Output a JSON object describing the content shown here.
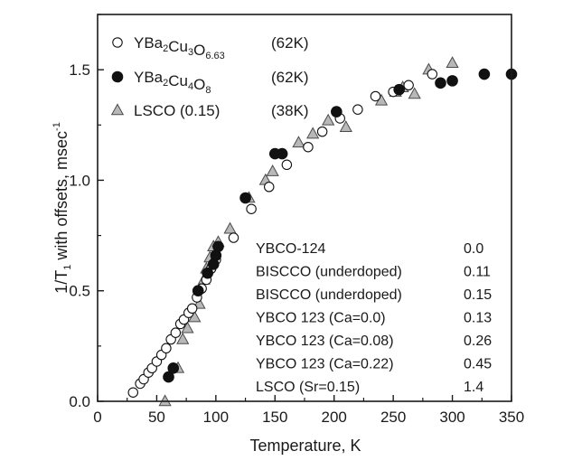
{
  "chart_data": {
    "type": "scatter",
    "title": "",
    "xlabel": {
      "main": "Temperature,",
      "unit": "K"
    },
    "ylabel": {
      "prefix": "1/T",
      "sub": "1",
      "rest": " with offsets,  msec",
      "sup": "-1"
    },
    "xlim": [
      0,
      350
    ],
    "ylim": [
      0,
      1.75
    ],
    "x_ticks": [
      0,
      50,
      100,
      150,
      200,
      250,
      300,
      350
    ],
    "y_ticks": [
      0.0,
      0.5,
      1.0,
      1.5
    ],
    "x_tick_labels": [
      "0",
      "50",
      "100",
      "150",
      "200",
      "250",
      "300",
      "350"
    ],
    "y_tick_labels": [
      "0.0",
      "0.5",
      "1.0",
      "1.5"
    ],
    "series": [
      {
        "name": "YBa2Cu3O6.63",
        "legend_parts": [
          {
            "t": "YBa",
            "s": "n"
          },
          {
            "t": "2",
            "s": "sub"
          },
          {
            "t": "Cu",
            "s": "n"
          },
          {
            "t": "3",
            "s": "sub"
          },
          {
            "t": "O",
            "s": "n"
          },
          {
            "t": "6.63",
            "s": "sub"
          }
        ],
        "tc": "(62K)",
        "marker": "open-circle",
        "points": [
          [
            30,
            0.04
          ],
          [
            36,
            0.08
          ],
          [
            39,
            0.1
          ],
          [
            43,
            0.13
          ],
          [
            46,
            0.15
          ],
          [
            50,
            0.18
          ],
          [
            54,
            0.21
          ],
          [
            58,
            0.24
          ],
          [
            62,
            0.28
          ],
          [
            66,
            0.31
          ],
          [
            70,
            0.35
          ],
          [
            73,
            0.37
          ],
          [
            77,
            0.4
          ],
          [
            80,
            0.42
          ],
          [
            84,
            0.47
          ],
          [
            88,
            0.51
          ],
          [
            92,
            0.55
          ],
          [
            96,
            0.6
          ],
          [
            100,
            0.64
          ],
          [
            115,
            0.74
          ],
          [
            130,
            0.87
          ],
          [
            145,
            0.97
          ],
          [
            160,
            1.07
          ],
          [
            178,
            1.15
          ],
          [
            190,
            1.22
          ],
          [
            205,
            1.28
          ],
          [
            220,
            1.32
          ],
          [
            235,
            1.38
          ],
          [
            250,
            1.4
          ],
          [
            263,
            1.43
          ],
          [
            283,
            1.48
          ]
        ]
      },
      {
        "name": "YBa2Cu4O8",
        "legend_parts": [
          {
            "t": "YBa",
            "s": "n"
          },
          {
            "t": "2",
            "s": "sub"
          },
          {
            "t": "Cu",
            "s": "n"
          },
          {
            "t": "4",
            "s": "sub"
          },
          {
            "t": "O",
            "s": "n"
          },
          {
            "t": "8",
            "s": "sub"
          }
        ],
        "tc": "(62K)",
        "marker": "filled-circle",
        "points": [
          [
            60,
            0.11
          ],
          [
            64,
            0.15
          ],
          [
            85,
            0.5
          ],
          [
            93,
            0.58
          ],
          [
            98,
            0.62
          ],
          [
            100,
            0.66
          ],
          [
            102,
            0.7
          ],
          [
            125,
            0.92
          ],
          [
            150,
            1.12
          ],
          [
            156,
            1.12
          ],
          [
            202,
            1.31
          ],
          [
            255,
            1.41
          ],
          [
            290,
            1.44
          ],
          [
            300,
            1.45
          ],
          [
            327,
            1.48
          ],
          [
            350,
            1.48
          ]
        ]
      },
      {
        "name": "LSCO (0.15)",
        "legend_parts": [
          {
            "t": "LSCO (0.15)",
            "s": "n"
          }
        ],
        "tc": "(38K)",
        "marker": "filled-triangle",
        "points": [
          [
            57,
            0.0
          ],
          [
            68,
            0.15
          ],
          [
            72,
            0.28
          ],
          [
            76,
            0.33
          ],
          [
            82,
            0.38
          ],
          [
            86,
            0.44
          ],
          [
            90,
            0.55
          ],
          [
            92,
            0.6
          ],
          [
            95,
            0.65
          ],
          [
            98,
            0.7
          ],
          [
            102,
            0.72
          ],
          [
            112,
            0.78
          ],
          [
            128,
            0.92
          ],
          [
            142,
            1.0
          ],
          [
            148,
            1.04
          ],
          [
            170,
            1.17
          ],
          [
            182,
            1.21
          ],
          [
            195,
            1.27
          ],
          [
            210,
            1.24
          ],
          [
            240,
            1.36
          ],
          [
            252,
            1.4
          ],
          [
            258,
            1.42
          ],
          [
            268,
            1.39
          ],
          [
            280,
            1.5
          ],
          [
            300,
            1.53
          ]
        ]
      }
    ],
    "offset_table": {
      "rows": [
        {
          "label": "YBCO-124",
          "value": "0.0"
        },
        {
          "label": "BISCCO (underdoped)",
          "value": "0.11"
        },
        {
          "label": "BISCCO (underdoped)",
          "value": "0.15"
        },
        {
          "label": "YBCO 123 (Ca=0.0)",
          "value": "0.13"
        },
        {
          "label": "YBCO 123 (Ca=0.08)",
          "value": "0.26"
        },
        {
          "label": "YBCO 123 (Ca=0.22)",
          "value": "0.45"
        },
        {
          "label": "LSCO  (Sr=0.15)",
          "value": "1.4"
        }
      ]
    },
    "colors": {
      "axis": "#1a1a1a",
      "open_fill": "#ffffff",
      "filled": "#111111",
      "triangle_fill": "#b8b8b8",
      "triangle_stroke": "#4a4a4a"
    }
  }
}
